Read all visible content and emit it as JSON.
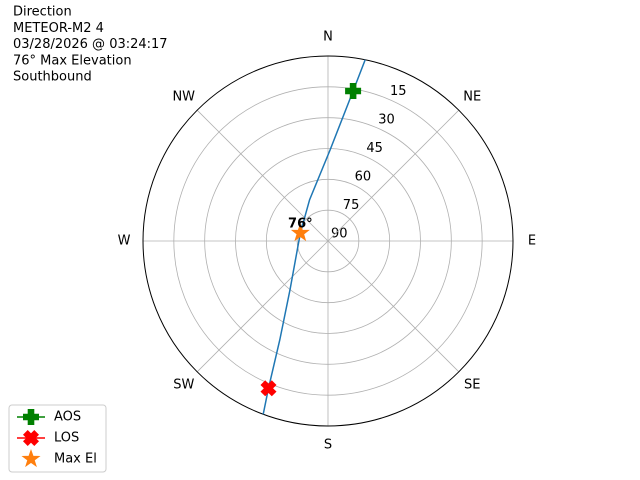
{
  "chart_data": {
    "type": "polar",
    "title_lines": [
      "Direction",
      "METEOR-M2 4",
      "03/28/2026 @ 03:24:17",
      "76° Max Elevation",
      "Southbound"
    ],
    "directions": [
      {
        "value": 0,
        "label": "N"
      },
      {
        "value": 45,
        "label": "NE"
      },
      {
        "value": 90,
        "label": "E"
      },
      {
        "value": 135,
        "label": "SE"
      },
      {
        "value": 180,
        "label": "S"
      },
      {
        "value": 225,
        "label": "SW"
      },
      {
        "value": 270,
        "label": "W"
      },
      {
        "value": 315,
        "label": "NW"
      }
    ],
    "rlim": [
      90,
      0
    ],
    "rticks": [
      15,
      30,
      45,
      60,
      75,
      90
    ],
    "grid": true,
    "track": {
      "color": "#1f77b4",
      "az": [
        11.6,
        9.5,
        1.3,
        336,
        286,
        218,
        206,
        202,
        200.5
      ],
      "el": [
        0,
        16,
        45.7,
        68,
        76,
        60,
        36.5,
        12.7,
        0
      ]
    },
    "markers": [
      {
        "name": "AOS",
        "color": "#008000",
        "shape": "plus",
        "az": 9.5,
        "el": 16
      },
      {
        "name": "LOS",
        "color": "#ff0000",
        "shape": "x",
        "az": 202,
        "el": 12.7
      },
      {
        "name": "Max El",
        "color": "#ff7f0e",
        "shape": "star",
        "az": 286,
        "el": 76
      }
    ],
    "annotation": "76°",
    "legend": "lower left"
  }
}
